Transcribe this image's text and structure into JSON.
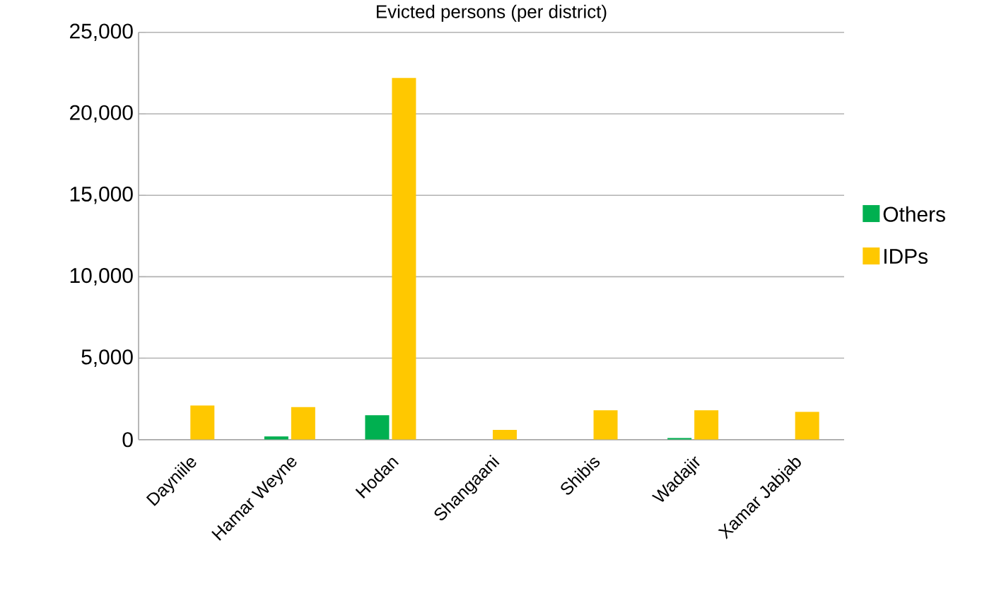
{
  "chart_data": {
    "type": "bar",
    "title": "Evicted persons (per district)",
    "categories": [
      "Dayniile",
      "Hamar Weyne",
      "Hodan",
      "Shangaani",
      "Shibis",
      "Wadajir",
      "Xamar Jabjab"
    ],
    "series": [
      {
        "name": "Others",
        "color": "#00b050",
        "values": [
          0,
          200,
          1500,
          0,
          0,
          100,
          0
        ]
      },
      {
        "name": "IDPs",
        "color": "#ffc800",
        "values": [
          2100,
          2000,
          22200,
          600,
          1800,
          1800,
          1700
        ]
      }
    ],
    "ylim": [
      0,
      25000
    ],
    "yticks": [
      {
        "value": 0,
        "label": "0"
      },
      {
        "value": 5000,
        "label": "5,000"
      },
      {
        "value": 10000,
        "label": "10,000"
      },
      {
        "value": 15000,
        "label": "15,000"
      },
      {
        "value": 20000,
        "label": "20,000"
      },
      {
        "value": 25000,
        "label": "25,000"
      }
    ],
    "grid": "y",
    "legend": "right"
  }
}
